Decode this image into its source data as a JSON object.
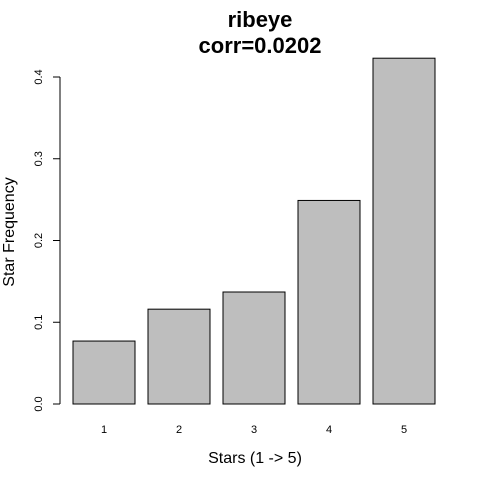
{
  "chart_data": {
    "type": "bar",
    "title": "ribeye",
    "subtitle": "corr=0.0202",
    "xlabel": "Stars (1 -> 5)",
    "ylabel": "Star Frequency",
    "categories": [
      "1",
      "2",
      "3",
      "4",
      "5"
    ],
    "values": [
      0.077,
      0.116,
      0.137,
      0.249,
      0.423
    ],
    "ylim": [
      0,
      0.4
    ],
    "yticks": [
      "0.0",
      "0.1",
      "0.2",
      "0.3",
      "0.4"
    ],
    "bar_color": "#bebebe",
    "grid": false,
    "legend": "none"
  }
}
